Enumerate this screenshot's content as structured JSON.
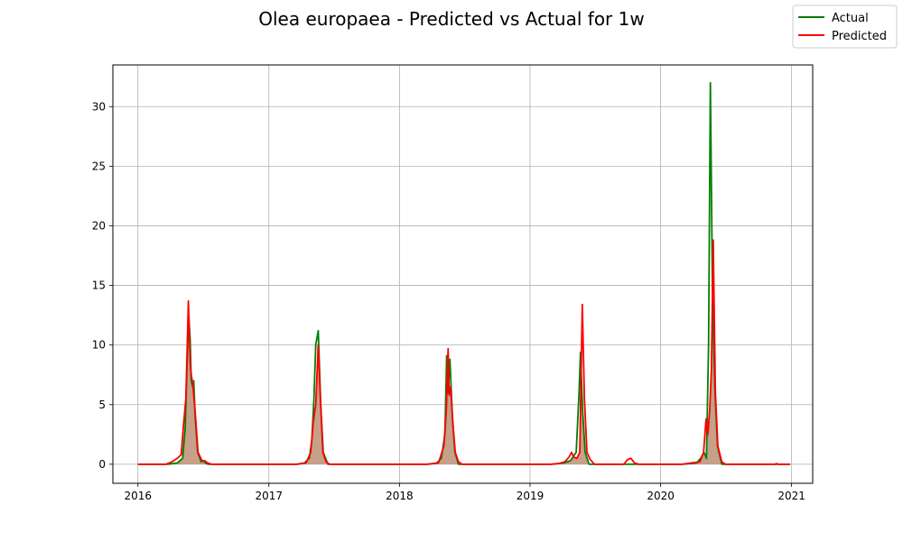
{
  "chart_data": {
    "type": "line",
    "title": "Olea europaea - Predicted vs Actual for 1w",
    "xlabel": "",
    "ylabel": "",
    "x_ticks": [
      "2016",
      "2017",
      "2018",
      "2019",
      "2020",
      "2021"
    ],
    "y_ticks": [
      "0",
      "5",
      "10",
      "15",
      "20",
      "25",
      "30"
    ],
    "xlim": [
      "2015-10-23",
      "2021-03-01"
    ],
    "ylim": [
      -1.6,
      33.5
    ],
    "grid": true,
    "legend_position": "top-right",
    "series": [
      {
        "name": "Actual",
        "color": "#008000",
        "points": [
          [
            "2016-01-01",
            0
          ],
          [
            "2016-03-25",
            0
          ],
          [
            "2016-04-20",
            0.1
          ],
          [
            "2016-05-05",
            0.5
          ],
          [
            "2016-05-12",
            3.0
          ],
          [
            "2016-05-17",
            8.0
          ],
          [
            "2016-05-22",
            12.5
          ],
          [
            "2016-05-26",
            10.5
          ],
          [
            "2016-05-29",
            7.0
          ],
          [
            "2016-06-02",
            6.5
          ],
          [
            "2016-06-05",
            7.0
          ],
          [
            "2016-06-09",
            4.0
          ],
          [
            "2016-06-16",
            1.0
          ],
          [
            "2016-06-26",
            0.2
          ],
          [
            "2016-07-02",
            0.3
          ],
          [
            "2016-07-08",
            0.1
          ],
          [
            "2016-07-15",
            0
          ],
          [
            "2017-03-20",
            0
          ],
          [
            "2017-04-10",
            0.1
          ],
          [
            "2017-04-24",
            0.5
          ],
          [
            "2017-05-01",
            2.0
          ],
          [
            "2017-05-07",
            5.5
          ],
          [
            "2017-05-12",
            10.0
          ],
          [
            "2017-05-19",
            11.2
          ],
          [
            "2017-05-26",
            5.0
          ],
          [
            "2017-06-02",
            1.0
          ],
          [
            "2017-06-15",
            0
          ],
          [
            "2018-03-20",
            0
          ],
          [
            "2018-04-15",
            0.1
          ],
          [
            "2018-04-28",
            0.5
          ],
          [
            "2018-05-08",
            2.5
          ],
          [
            "2018-05-13",
            9.1
          ],
          [
            "2018-05-17",
            6.0
          ],
          [
            "2018-05-22",
            8.8
          ],
          [
            "2018-05-29",
            4.0
          ],
          [
            "2018-06-05",
            1.0
          ],
          [
            "2018-06-15",
            0
          ],
          [
            "2019-03-01",
            0
          ],
          [
            "2019-04-05",
            0.1
          ],
          [
            "2019-04-24",
            0.3
          ],
          [
            "2019-05-10",
            1.0
          ],
          [
            "2019-05-18",
            6.0
          ],
          [
            "2019-05-22",
            9.4
          ],
          [
            "2019-05-28",
            4.5
          ],
          [
            "2019-06-04",
            1.0
          ],
          [
            "2019-06-15",
            0
          ],
          [
            "2020-03-01",
            0
          ],
          [
            "2020-04-10",
            0.1
          ],
          [
            "2020-04-22",
            0.5
          ],
          [
            "2020-05-01",
            1.0
          ],
          [
            "2020-05-08",
            0.5
          ],
          [
            "2020-05-14",
            10.0
          ],
          [
            "2020-05-19",
            32.0
          ],
          [
            "2020-05-25",
            14.0
          ],
          [
            "2020-06-01",
            6.0
          ],
          [
            "2020-06-08",
            1.5
          ],
          [
            "2020-06-20",
            0
          ],
          [
            "2020-12-28",
            0
          ]
        ]
      },
      {
        "name": "Predicted",
        "color": "#ff0000",
        "points": [
          [
            "2016-01-01",
            0
          ],
          [
            "2016-03-20",
            0
          ],
          [
            "2016-04-05",
            0.2
          ],
          [
            "2016-04-20",
            0.5
          ],
          [
            "2016-05-01",
            0.8
          ],
          [
            "2016-05-08",
            3.5
          ],
          [
            "2016-05-14",
            5.5
          ],
          [
            "2016-05-21",
            13.7
          ],
          [
            "2016-05-27",
            8.0
          ],
          [
            "2016-06-03",
            6.5
          ],
          [
            "2016-06-10",
            4.0
          ],
          [
            "2016-06-17",
            1.0
          ],
          [
            "2016-06-28",
            0.3
          ],
          [
            "2016-07-05",
            0.3
          ],
          [
            "2016-07-14",
            0.1
          ],
          [
            "2016-07-25",
            0
          ],
          [
            "2017-03-20",
            0
          ],
          [
            "2017-04-15",
            0.1
          ],
          [
            "2017-04-28",
            1.0
          ],
          [
            "2017-05-05",
            3.5
          ],
          [
            "2017-05-12",
            5.0
          ],
          [
            "2017-05-19",
            10.0
          ],
          [
            "2017-05-25",
            5.5
          ],
          [
            "2017-06-01",
            1.0
          ],
          [
            "2017-06-10",
            0.2
          ],
          [
            "2017-06-20",
            0
          ],
          [
            "2018-03-20",
            0
          ],
          [
            "2018-04-20",
            0.1
          ],
          [
            "2018-05-05",
            1.5
          ],
          [
            "2018-05-12",
            4.5
          ],
          [
            "2018-05-17",
            9.7
          ],
          [
            "2018-05-20",
            5.8
          ],
          [
            "2018-05-24",
            6.5
          ],
          [
            "2018-05-30",
            3.5
          ],
          [
            "2018-06-06",
            1.0
          ],
          [
            "2018-06-15",
            0.2
          ],
          [
            "2018-06-25",
            0
          ],
          [
            "2019-03-01",
            0
          ],
          [
            "2019-03-20",
            0.05
          ],
          [
            "2019-04-08",
            0.2
          ],
          [
            "2019-04-20",
            0.6
          ],
          [
            "2019-04-27",
            1.0
          ],
          [
            "2019-05-03",
            0.6
          ],
          [
            "2019-05-12",
            0.5
          ],
          [
            "2019-05-20",
            1.0
          ],
          [
            "2019-05-27",
            13.4
          ],
          [
            "2019-06-02",
            5.5
          ],
          [
            "2019-06-09",
            1.0
          ],
          [
            "2019-06-18",
            0.4
          ],
          [
            "2019-06-30",
            0
          ],
          [
            "2019-09-20",
            0
          ],
          [
            "2019-10-01",
            0.4
          ],
          [
            "2019-10-10",
            0.5
          ],
          [
            "2019-10-20",
            0.1
          ],
          [
            "2019-11-01",
            0
          ],
          [
            "2020-03-01",
            0
          ],
          [
            "2020-04-20",
            0.2
          ],
          [
            "2020-04-30",
            1.0
          ],
          [
            "2020-05-07",
            3.8
          ],
          [
            "2020-05-12",
            2.5
          ],
          [
            "2020-05-17",
            4.5
          ],
          [
            "2020-05-22",
            8.0
          ],
          [
            "2020-05-27",
            18.8
          ],
          [
            "2020-06-02",
            6.0
          ],
          [
            "2020-06-09",
            1.5
          ],
          [
            "2020-06-20",
            0.2
          ],
          [
            "2020-06-30",
            0
          ],
          [
            "2020-11-15",
            0
          ],
          [
            "2020-11-20",
            0.05
          ],
          [
            "2020-11-25",
            0
          ],
          [
            "2020-12-28",
            0
          ]
        ]
      }
    ],
    "fill_color": "#bc8f74"
  }
}
